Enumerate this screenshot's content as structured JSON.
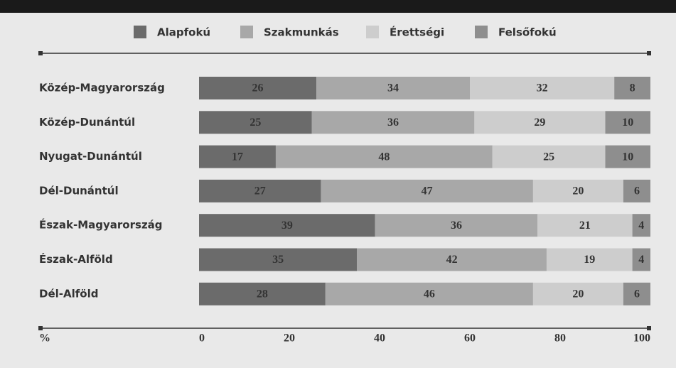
{
  "chart_data": {
    "type": "stacked_barh",
    "categories": [
      "Közép-Magyarország",
      "Közép-Dunántúl",
      "Nyugat-Dunántúl",
      "Dél-Dunántúl",
      "Észak-Magyarország",
      "Észak-Alföld",
      "Dél-Alföld"
    ],
    "series": [
      {
        "name": "Alapfokú",
        "color": "#6b6b6b",
        "values": [
          26,
          25,
          17,
          27,
          39,
          35,
          28
        ]
      },
      {
        "name": "Szakmunkás",
        "color": "#a8a8a8",
        "values": [
          34,
          36,
          48,
          47,
          36,
          42,
          46
        ]
      },
      {
        "name": "Érettségi",
        "color": "#cdcdcd",
        "values": [
          32,
          29,
          25,
          20,
          21,
          19,
          20
        ]
      },
      {
        "name": "Felsőfokú",
        "color": "#8e8e8e",
        "values": [
          8,
          10,
          10,
          6,
          4,
          4,
          6
        ]
      }
    ],
    "xlabel": "%",
    "xlim": [
      0,
      100
    ],
    "xticks": [
      0,
      20,
      40,
      60,
      80,
      100
    ],
    "legend": "top"
  }
}
